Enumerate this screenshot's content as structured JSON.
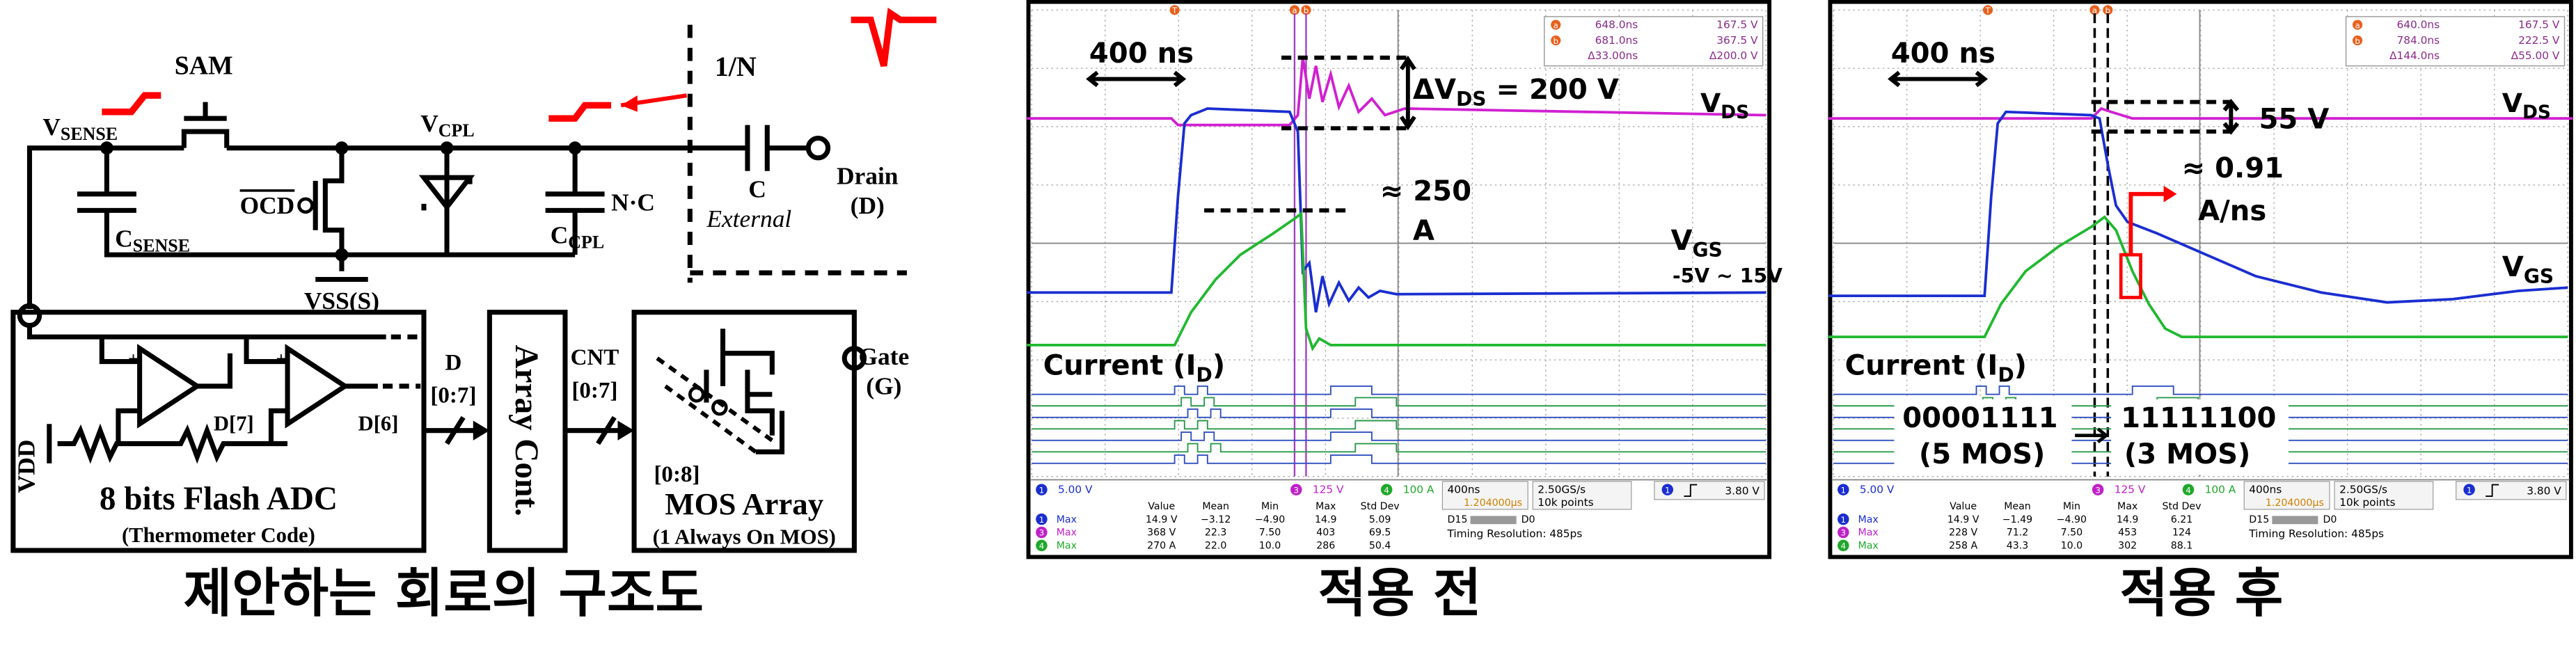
{
  "circuit": {
    "sam": "SAM",
    "v_sense": [
      "V",
      "SENSE"
    ],
    "v_cpl": [
      "V",
      "CPL"
    ],
    "ratio": "1/N",
    "drain": [
      "Drain",
      "(D)"
    ],
    "c_ext": [
      "C",
      "External"
    ],
    "ocd": "OCD",
    "c_sense": [
      "C",
      "SENSE"
    ],
    "nc": "N·C",
    "c_cpl": [
      "C",
      "CPL"
    ],
    "vss": "VSS(S)",
    "d7": "D[7]",
    "d6": "D[6]",
    "vdd": "VDD",
    "adc": [
      "8 bits Flash ADC",
      "(Thermometer Code)"
    ],
    "d_bus": [
      "D",
      "[0:7]"
    ],
    "array_cont": "Array Cont.",
    "cnt_bus": [
      "CNT",
      "[0:7]"
    ],
    "gate": [
      "Gate",
      "(G)"
    ],
    "mos_bus": "[0:8]",
    "mos_array": [
      "MOS Array",
      "(1 Always On MOS)"
    ],
    "caption": "제안하는 회로의 구조도"
  },
  "scope_before": {
    "markers": [
      "T",
      "a",
      "b"
    ],
    "readout": [
      {
        "marker": "a",
        "time": "648.0ns",
        "value": "167.5 V"
      },
      {
        "marker": "b",
        "time": "681.0ns",
        "value": "367.5 V"
      },
      {
        "time": "Δ33.00ns",
        "value": "Δ200.0 V"
      }
    ],
    "annotations": [
      [
        "400 ns"
      ],
      [
        "ΔV",
        "DS",
        " = 200 V"
      ],
      [
        "V",
        "DS"
      ],
      [
        "≈ 250"
      ],
      [
        "A"
      ],
      [
        "V",
        "GS"
      ],
      [
        "-5V ~ 15V"
      ],
      [
        "Current (I",
        "D",
        ")"
      ]
    ],
    "channels": [
      {
        "num": "1",
        "scale": "5.00 V"
      },
      {
        "num": "3",
        "scale": "125 V"
      },
      {
        "num": "4",
        "scale": "100 A"
      }
    ],
    "measure_headers": [
      "Value",
      "Mean",
      "Min",
      "Max",
      "Std Dev"
    ],
    "measure_rows": [
      {
        "num": "1",
        "label": "Max",
        "cells": [
          "14.9 V",
          "−3.12",
          "−4.90",
          "14.9",
          "5.09"
        ]
      },
      {
        "num": "3",
        "label": "Max",
        "cells": [
          "368 V",
          "22.3",
          "7.50",
          "403",
          "69.5"
        ]
      },
      {
        "num": "4",
        "label": "Max",
        "cells": [
          "270 A",
          "22.0",
          "10.0",
          "286",
          "50.4"
        ]
      }
    ],
    "timebase": "400ns",
    "delay": "1.204000µs",
    "sample_rate": "2.50GS/s",
    "record": "10k points",
    "digital": [
      "D15",
      "D0"
    ],
    "timing": "Timing Resolution: 485ps",
    "trigger": {
      "num": "1",
      "level": "3.80 V"
    },
    "caption": "적용 전"
  },
  "scope_after": {
    "markers": [
      "T",
      "a",
      "b"
    ],
    "readout": [
      {
        "marker": "a",
        "time": "640.0ns",
        "value": "167.5 V"
      },
      {
        "marker": "b",
        "time": "784.0ns",
        "value": "222.5 V"
      },
      {
        "time": "Δ144.0ns",
        "value": "Δ55.00 V"
      }
    ],
    "annotations": [
      [
        "400 ns"
      ],
      [
        "55 V"
      ],
      [
        "V",
        "DS"
      ],
      [
        "≈ 0.91"
      ],
      [
        "A/ns"
      ],
      [
        "V",
        "GS"
      ],
      [
        "Current (I",
        "D",
        ")"
      ],
      [
        "00001111"
      ],
      [
        "(5 MOS)"
      ],
      [
        "11111100"
      ],
      [
        "(3 MOS)"
      ]
    ],
    "channels": [
      {
        "num": "1",
        "scale": "5.00 V"
      },
      {
        "num": "3",
        "scale": "125 V"
      },
      {
        "num": "4",
        "scale": "100 A"
      }
    ],
    "measure_headers": [
      "Value",
      "Mean",
      "Min",
      "Max",
      "Std Dev"
    ],
    "measure_rows": [
      {
        "num": "1",
        "label": "Max",
        "cells": [
          "14.9 V",
          "−1.49",
          "−4.90",
          "14.9",
          "6.21"
        ]
      },
      {
        "num": "3",
        "label": "Max",
        "cells": [
          "228 V",
          "71.2",
          "7.50",
          "453",
          "124"
        ]
      },
      {
        "num": "4",
        "label": "Max",
        "cells": [
          "258 A",
          "43.3",
          "10.0",
          "302",
          "88.1"
        ]
      }
    ],
    "timebase": "400ns",
    "delay": "1.204000µs",
    "sample_rate": "2.50GS/s",
    "record": "10k points",
    "digital": [
      "D15",
      "D0"
    ],
    "timing": "Timing Resolution: 485ps",
    "trigger": {
      "num": "1",
      "level": "3.80 V"
    },
    "caption": "적용 후"
  }
}
